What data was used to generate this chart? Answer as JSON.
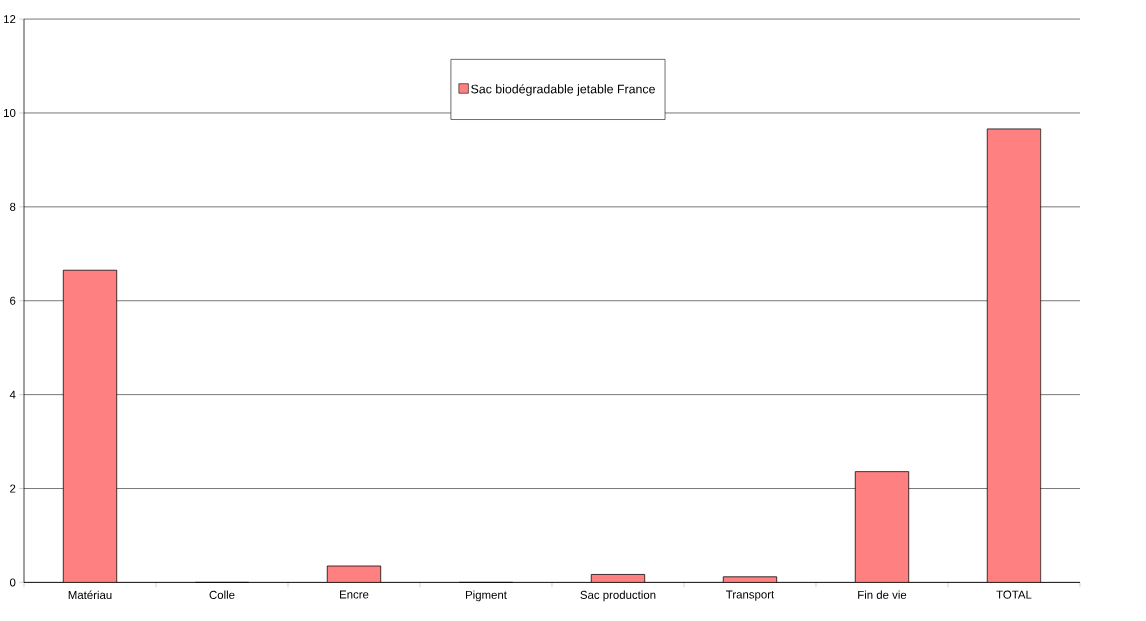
{
  "chart_data": {
    "type": "bar",
    "categories": [
      "Matériau",
      "Colle",
      "Encre",
      "Pigment",
      "Sac production",
      "Transport",
      "Fin de vie",
      "TOTAL"
    ],
    "series": [
      {
        "name": "Sac biodégradable jetable France",
        "color": "#ff8080",
        "values": [
          6.65,
          0,
          0.35,
          0,
          0.17,
          0.12,
          2.36,
          9.66
        ]
      }
    ],
    "ylim": [
      0,
      12
    ],
    "yticks": [
      0,
      2,
      4,
      6,
      8,
      10,
      12
    ],
    "grid": "y",
    "legend": "top"
  }
}
